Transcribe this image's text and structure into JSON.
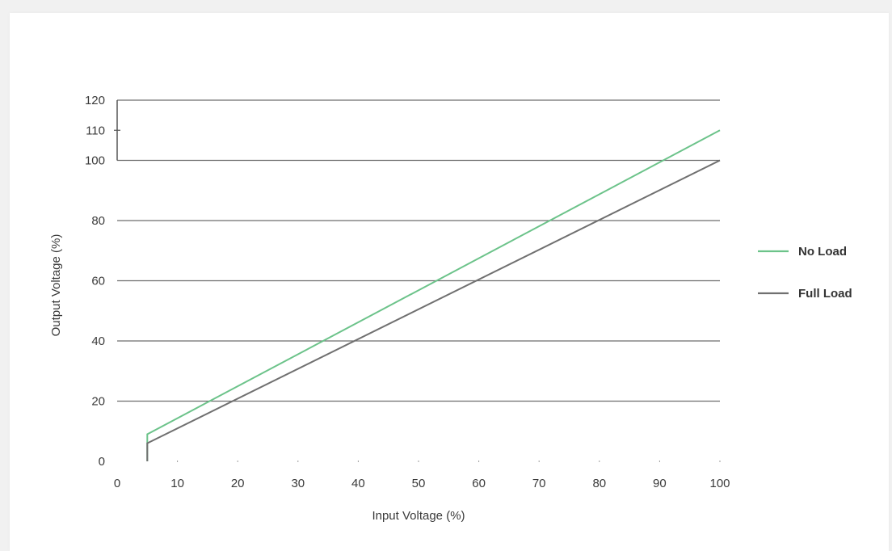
{
  "chart_data": {
    "type": "line",
    "title": "",
    "xlabel": "Input Voltage (%)",
    "ylabel": "Output Voltage (%)",
    "xlim": [
      0,
      100
    ],
    "ylim": [
      0,
      120
    ],
    "x_ticks": [
      0,
      10,
      20,
      30,
      40,
      50,
      60,
      70,
      80,
      90,
      100
    ],
    "y_ticks": [
      0,
      20,
      40,
      60,
      80,
      100,
      110,
      120
    ],
    "gridlines_y": [
      20,
      40,
      60,
      80,
      100,
      120
    ],
    "grid": true,
    "legend_position": "right",
    "series": [
      {
        "name": "No Load",
        "color": "#6cc38a",
        "points": [
          [
            5,
            0
          ],
          [
            5,
            9
          ],
          [
            100,
            110
          ]
        ]
      },
      {
        "name": "Full Load",
        "color": "#707070",
        "points": [
          [
            5,
            0
          ],
          [
            5,
            6
          ],
          [
            100,
            100
          ]
        ]
      }
    ]
  }
}
